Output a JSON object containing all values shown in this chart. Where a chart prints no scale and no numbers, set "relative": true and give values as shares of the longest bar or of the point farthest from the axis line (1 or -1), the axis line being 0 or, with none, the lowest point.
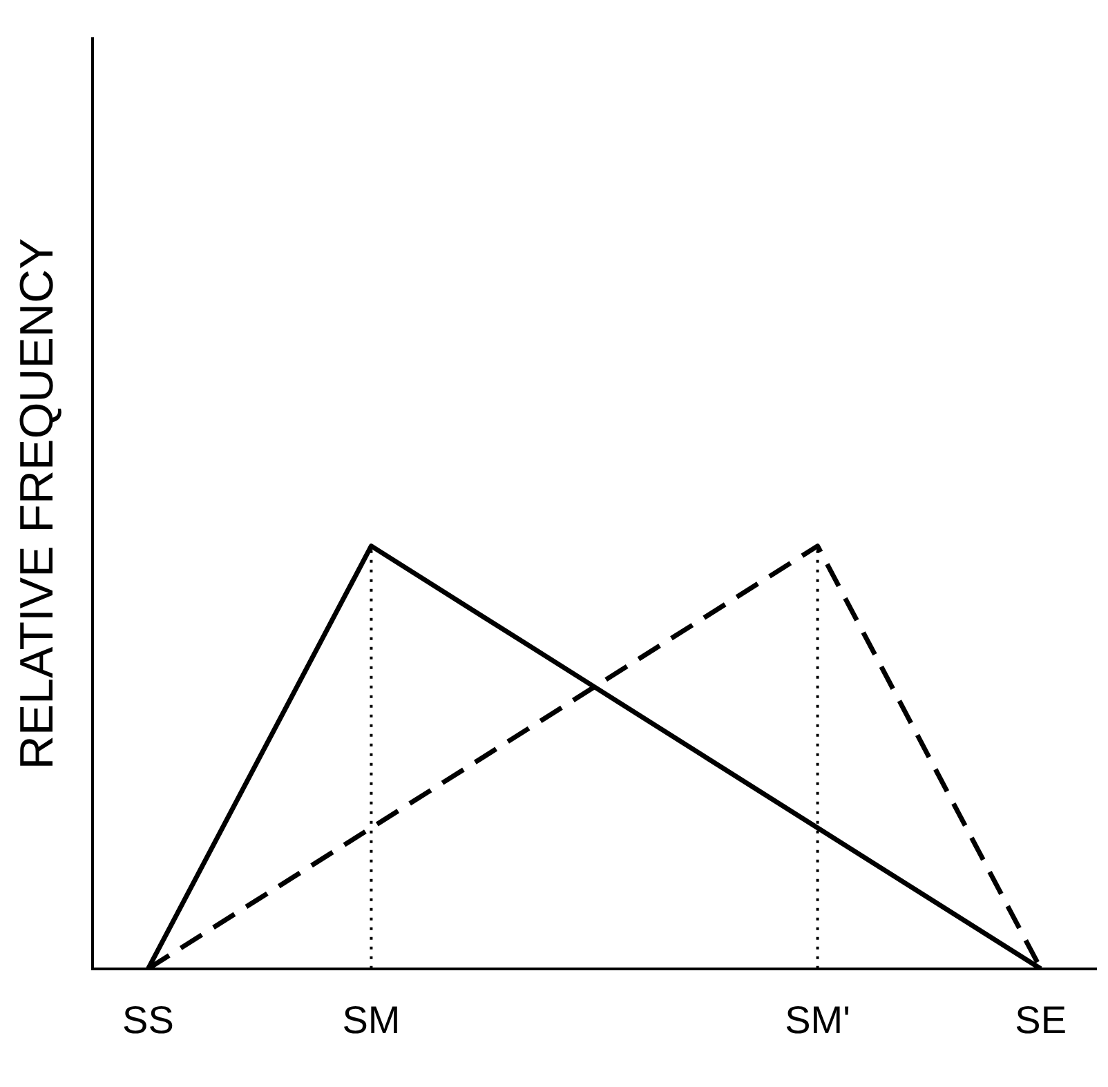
{
  "chart_data": {
    "type": "line",
    "relative": true,
    "ylabel": "RELATIVE FREQUENCY",
    "categories": [
      "SS",
      null,
      "SM",
      null,
      null,
      null,
      "SM'",
      null,
      "SE"
    ],
    "series": [
      {
        "color": "#000000",
        "line_style": "solid",
        "values": [
          0,
          0.5,
          1,
          0.8333,
          0.6667,
          0.5,
          0.3333,
          0.1667,
          0
        ]
      },
      {
        "color": "#000000",
        "line_style": "dashed",
        "values": [
          0,
          0.1667,
          0.3333,
          0.5,
          0.6667,
          0.8333,
          1,
          0.5,
          0
        ]
      }
    ],
    "ref_lines": [
      {
        "axis": "x",
        "value": "SM",
        "line_style": "dotted",
        "color": "#000000"
      },
      {
        "axis": "x",
        "value": "SM'",
        "line_style": "dotted",
        "color": "#000000"
      }
    ],
    "grid": false,
    "legend": false,
    "marker": "none"
  }
}
